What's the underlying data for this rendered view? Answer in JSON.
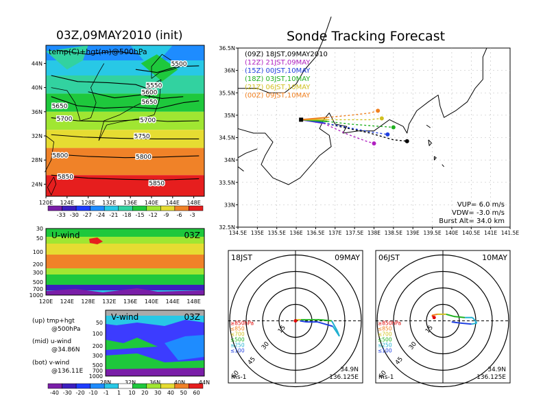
{
  "titles": {
    "init": "03Z,09MAY2010 (init)",
    "forecast": "Sonde Tracking Forecast"
  },
  "chart_data": [
    {
      "type": "heatmap",
      "panel": "temperature-height-500hPa",
      "label": "temp(C)+hgt(m)@500hPa",
      "x_ticks": [
        "120E",
        "124E",
        "128E",
        "132E",
        "136E",
        "140E",
        "144E",
        "148E"
      ],
      "y_ticks": [
        "44N",
        "40N",
        "36N",
        "32N",
        "28N",
        "24N"
      ],
      "xlim": [
        120,
        150
      ],
      "ylim": [
        22,
        47
      ],
      "contour_labels": [
        "5500",
        "5550",
        "5600",
        "5650",
        "5650",
        "5700",
        "5700",
        "5750",
        "5800",
        "5800",
        "5850",
        "5850"
      ],
      "colorbar": {
        "ticks": [
          "-33",
          "-30",
          "-27",
          "-24",
          "-21",
          "-18",
          "-15",
          "-12",
          "-9",
          "-6",
          "-3"
        ],
        "colors": [
          "#7a1ea8",
          "#3c1ebe",
          "#1e3cff",
          "#1e8cff",
          "#28c8e6",
          "#32d2a0",
          "#1ec83c",
          "#a0e632",
          "#e6dc32",
          "#f08228",
          "#e61e1e"
        ]
      }
    },
    {
      "type": "heatmap",
      "panel": "u-wind",
      "label": "U-wind",
      "time": "03Z",
      "x_ticks": [
        "120E",
        "124E",
        "128E",
        "132E",
        "136E",
        "140E",
        "144E",
        "148E"
      ],
      "y_ticks": [
        "30",
        "50",
        "100",
        "200",
        "300",
        "500",
        "700",
        "1000"
      ]
    },
    {
      "type": "heatmap",
      "panel": "v-wind",
      "label": "V-wind",
      "time": "03Z",
      "x_ticks": [
        "28N",
        "32N",
        "36N",
        "40N",
        "44N"
      ],
      "y_ticks": [
        "50",
        "100",
        "200",
        "300",
        "500",
        "700",
        "1000"
      ],
      "colorbar": {
        "ticks": [
          "-40",
          "-30",
          "-20",
          "-10",
          "-1",
          "1",
          "10",
          "20",
          "30",
          "40",
          "50",
          "60"
        ],
        "colors": [
          "#7a1ea8",
          "#3c1ebe",
          "#1e3cff",
          "#1e8cff",
          "#28c8e6",
          "#ffffff",
          "#1ec83c",
          "#a0e632",
          "#e6dc32",
          "#f08228",
          "#e61e1e"
        ]
      }
    },
    {
      "type": "line",
      "panel": "sonde-tracks",
      "x_ticks": [
        "134.5E",
        "135E",
        "135.5E",
        "136E",
        "136.5E",
        "137E",
        "137.5E",
        "138E",
        "138.5E",
        "139E",
        "139.5E",
        "140E",
        "140.5E",
        "141E",
        "141.5E"
      ],
      "y_ticks": [
        "36.5N",
        "36N",
        "35.5N",
        "35N",
        "34.5N",
        "34N",
        "33.5N",
        "33N",
        "32.5N"
      ],
      "xlim": [
        134.5,
        141.5
      ],
      "ylim": [
        32.5,
        36.5
      ],
      "launch": [
        136.125,
        34.9
      ],
      "series": [
        {
          "name": "(09Z)  18JST,09MAY2010",
          "color": "#000000",
          "x": [
            136.125,
            136.6,
            137.2,
            137.9,
            138.5,
            138.85
          ],
          "y": [
            34.9,
            34.85,
            34.73,
            34.6,
            34.45,
            34.42
          ]
        },
        {
          "name": "(12Z)  21JST,09MAY",
          "color": "#b020c0",
          "x": [
            136.125,
            136.7,
            137.3,
            137.8,
            138.0
          ],
          "y": [
            34.9,
            34.82,
            34.58,
            34.42,
            34.37
          ]
        },
        {
          "name": "(15Z)  00JST,10MAY",
          "color": "#2040e0",
          "x": [
            136.125,
            136.7,
            137.3,
            137.9,
            138.35
          ],
          "y": [
            34.9,
            34.83,
            34.73,
            34.63,
            34.57
          ]
        },
        {
          "name": "(18Z)  03JST,10MAY",
          "color": "#20b020",
          "x": [
            136.125,
            136.8,
            137.4,
            138.0,
            138.5
          ],
          "y": [
            34.9,
            34.86,
            34.8,
            34.76,
            34.73
          ]
        },
        {
          "name": "(21Z)  06JST,10MAY",
          "color": "#d0c020",
          "x": [
            136.125,
            136.8,
            137.4,
            137.9,
            138.2
          ],
          "y": [
            34.9,
            34.9,
            34.9,
            34.9,
            34.93
          ]
        },
        {
          "name": "(00Z)  09JST,10MAY",
          "color": "#f08020",
          "x": [
            136.125,
            136.8,
            137.4,
            137.9,
            138.1
          ],
          "y": [
            34.9,
            34.95,
            35.0,
            35.05,
            35.1
          ]
        }
      ],
      "annotations": [
        "VUP=  6.0  m/s",
        "VDW= -3.0  m/s",
        "Burst Alt=  34.0  km"
      ]
    },
    {
      "type": "line",
      "panel": "hodograph-1",
      "time": "18JST",
      "date": "09MAY",
      "speed_rings": [
        "15",
        "30",
        "45",
        "60"
      ],
      "unit": "ms-1",
      "location": [
        "34.9N",
        "136.125E"
      ],
      "legend": [
        {
          "text": "≥850hPa",
          "color": "#e00000"
        },
        {
          "text": "≤850",
          "color": "#f08020"
        },
        {
          "text": "≤700",
          "color": "#d0c020"
        },
        {
          "text": "≤500",
          "color": "#20b020"
        },
        {
          "text": "≤250",
          "color": "#20b0d0"
        },
        {
          "text": "≤100",
          "color": "#2040e0"
        }
      ],
      "u": [
        0,
        1,
        5,
        12,
        22,
        33,
        38,
        40,
        34,
        20,
        10,
        4
      ],
      "v": [
        0,
        1,
        1,
        1,
        1,
        0,
        -9,
        -14,
        -5,
        -1,
        -1,
        0
      ],
      "colors": [
        "#e00000",
        "#f08020",
        "#d0c020",
        "#20b020",
        "#20b020",
        "#20b020",
        "#20b0d0",
        "#20b0d0",
        "#20b0d0",
        "#2040e0",
        "#2040e0",
        "#2040e0"
      ]
    },
    {
      "type": "line",
      "panel": "hodograph-2",
      "time": "06JST",
      "date": "10MAY",
      "speed_rings": [
        "15",
        "30",
        "45",
        "60"
      ],
      "unit": "ms-1",
      "location": [
        "34.9N",
        "136.125E"
      ],
      "legend": [
        {
          "text": "≥850hPa",
          "color": "#e00000"
        },
        {
          "text": "≤850",
          "color": "#f08020"
        },
        {
          "text": "≤700",
          "color": "#d0c020"
        },
        {
          "text": "≤500",
          "color": "#20b020"
        },
        {
          "text": "≤250",
          "color": "#20b0d0"
        },
        {
          "text": "≤100",
          "color": "#2040e0"
        }
      ],
      "u": [
        -8,
        -10,
        -5,
        3,
        10,
        20,
        27,
        31,
        26,
        16,
        8
      ],
      "v": [
        3,
        5,
        6,
        6,
        4,
        3,
        3,
        -2,
        -3,
        -2,
        -1
      ],
      "colors": [
        "#e00000",
        "#e00000",
        "#f08020",
        "#d0c020",
        "#20b020",
        "#20b020",
        "#20b0d0",
        "#20b0d0",
        "#20b0d0",
        "#2040e0",
        "#2040e0"
      ]
    }
  ],
  "side_labels": {
    "up": "(up) tmp+hgt",
    "up2": "@500hPa",
    "mid": "(mid) u-wind",
    "mid2": "@34.86N",
    "bot": "(bot) v-wind",
    "bot2": "@136.11E"
  }
}
